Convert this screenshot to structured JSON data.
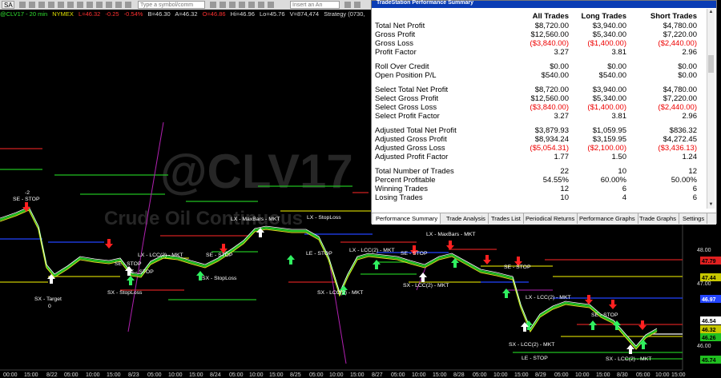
{
  "toolbar": {
    "sa_label": "SA",
    "symbol_placeholder": "Type a symbol/comm",
    "insert_placeholder": "Insert an An"
  },
  "status": {
    "symbol": "@CLV17 - 20 min",
    "exchange": "NYMEX",
    "last": "L=46.32",
    "change": "-0.25",
    "change_pct": "-0.54%",
    "bid": "B=46.30",
    "ask": "A=46.32",
    "open": "O=46.86",
    "high": "Hi=46.96",
    "low": "Lo=45.76",
    "volume": "V=874,474",
    "strategy": "Strategy (0730,"
  },
  "watermark": {
    "symbol": "@CLV17",
    "name": "Crude Oil Continuous"
  },
  "price_axis": {
    "ticks": [
      "48.00",
      "47.00",
      "46.00"
    ],
    "markers": [
      {
        "label": "47.79",
        "color": "#e02020"
      },
      {
        "label": "47.44",
        "color": "#c8c800"
      },
      {
        "label": "46.97",
        "color": "#2244ff"
      },
      {
        "label": "46.54",
        "color": "#ffffff"
      },
      {
        "label": "46.32",
        "color": "#c8c800"
      },
      {
        "label": "46.26",
        "color": "#20c020"
      },
      {
        "label": "45.74",
        "color": "#20c020"
      }
    ]
  },
  "time_axis": [
    "00:00",
    "15:00",
    "8/22",
    "05:00",
    "10:00",
    "15:00",
    "8/23",
    "05:00",
    "10:00",
    "15:00",
    "8/24",
    "05:00",
    "10:00",
    "15:00",
    "8/25",
    "05:00",
    "10:00",
    "15:00",
    "8/27",
    "05:00",
    "10:00",
    "15:00",
    "8/28",
    "05:00",
    "10:00",
    "15:00",
    "8/29",
    "05:00",
    "10:00",
    "15:00",
    "8/30",
    "05:00",
    "10:00",
    "15:00"
  ],
  "trade_labels": [
    {
      "text": "SE - STOP",
      "color": "#ffffff"
    },
    {
      "text": "-2",
      "color": "#ffffff"
    },
    {
      "text": "SX - Target",
      "color": "#ffffff"
    },
    {
      "text": "0",
      "color": "#ffffff"
    },
    {
      "text": "SE - STOP",
      "color": "#ffffff"
    },
    {
      "text": "LE - STOP",
      "color": "#ffffff"
    },
    {
      "text": "SX - StopLoss",
      "color": "#ffffff"
    },
    {
      "text": "LX - LCC(2) - MKT",
      "color": "#ffffff"
    },
    {
      "text": "SE - STOP",
      "color": "#ffffff"
    },
    {
      "text": "SX - StopLoss",
      "color": "#ffffff"
    },
    {
      "text": "LX - MaxBars - MKT",
      "color": "#ffffff"
    },
    {
      "text": "LX - StopLoss",
      "color": "#ffffff"
    },
    {
      "text": "LE - STOP",
      "color": "#ffffff"
    },
    {
      "text": "SX - LCC(2) - MKT",
      "color": "#ffffff"
    },
    {
      "text": "LX - MaxBars - MKT",
      "color": "#ffffff"
    },
    {
      "text": "LX - LCC(2) - MKT",
      "color": "#ffffff"
    },
    {
      "text": "SE - STOP",
      "color": "#ffffff"
    },
    {
      "text": "SX - LCC(2) - MKT",
      "color": "#ffffff"
    },
    {
      "text": "SE - STOP",
      "color": "#ffffff"
    },
    {
      "text": "LX - LCC(2) - MKT",
      "color": "#ffffff"
    },
    {
      "text": "SE - STOP",
      "color": "#ffffff"
    },
    {
      "text": "SX - LCC(2) - MKT",
      "color": "#ffffff"
    },
    {
      "text": "LE - STOP",
      "color": "#ffffff"
    },
    {
      "text": "SX - LCC(2) - MKT",
      "color": "#ffffff"
    }
  ],
  "performance": {
    "title": "TradeStation Performance Summary",
    "columns": [
      "All Trades",
      "Long Trades",
      "Short Trades"
    ],
    "groups": [
      [
        {
          "label": "Total Net Profit",
          "values": [
            "$8,720.00",
            "$3,940.00",
            "$4,780.00"
          ],
          "neg": false
        },
        {
          "label": "Gross Profit",
          "values": [
            "$12,560.00",
            "$5,340.00",
            "$7,220.00"
          ],
          "neg": false
        },
        {
          "label": "Gross Loss",
          "values": [
            "($3,840.00)",
            "($1,400.00)",
            "($2,440.00)"
          ],
          "neg": true
        },
        {
          "label": "Profit Factor",
          "values": [
            "3.27",
            "3.81",
            "2.96"
          ],
          "neg": false
        }
      ],
      [
        {
          "label": "Roll Over Credit",
          "values": [
            "$0.00",
            "$0.00",
            "$0.00"
          ],
          "neg": false
        },
        {
          "label": "Open Position P/L",
          "values": [
            "$540.00",
            "$540.00",
            "$0.00"
          ],
          "neg": false
        }
      ],
      [
        {
          "label": "Select Total Net Profit",
          "values": [
            "$8,720.00",
            "$3,940.00",
            "$4,780.00"
          ],
          "neg": false
        },
        {
          "label": "Select Gross Profit",
          "values": [
            "$12,560.00",
            "$5,340.00",
            "$7,220.00"
          ],
          "neg": false
        },
        {
          "label": "Select Gross Loss",
          "values": [
            "($3,840.00)",
            "($1,400.00)",
            "($2,440.00)"
          ],
          "neg": true
        },
        {
          "label": "Select Profit Factor",
          "values": [
            "3.27",
            "3.81",
            "2.96"
          ],
          "neg": false
        }
      ],
      [
        {
          "label": "Adjusted Total Net Profit",
          "values": [
            "$3,879.93",
            "$1,059.95",
            "$836.32"
          ],
          "neg": false
        },
        {
          "label": "Adjusted Gross Profit",
          "values": [
            "$8,934.24",
            "$3,159.95",
            "$4,272.45"
          ],
          "neg": false
        },
        {
          "label": "Adjusted Gross Loss",
          "values": [
            "($5,054.31)",
            "($2,100.00)",
            "($3,436.13)"
          ],
          "neg": true
        },
        {
          "label": "Adjusted Profit Factor",
          "values": [
            "1.77",
            "1.50",
            "1.24"
          ],
          "neg": false
        }
      ],
      [
        {
          "label": "Total Number of Trades",
          "values": [
            "22",
            "10",
            "12"
          ],
          "neg": false
        },
        {
          "label": "Percent Profitable",
          "values": [
            "54.55%",
            "60.00%",
            "50.00%"
          ],
          "neg": false
        },
        {
          "label": "Winning Trades",
          "values": [
            "12",
            "6",
            "6"
          ],
          "neg": false
        },
        {
          "label": "Losing Trades",
          "values": [
            "10",
            "4",
            "6"
          ],
          "neg": false
        }
      ]
    ],
    "tabs": [
      "Performance Summary",
      "Trade Analysis",
      "Trades List",
      "Periodical Returns",
      "Performance Graphs",
      "Trade Graphs",
      "Settings"
    ]
  }
}
